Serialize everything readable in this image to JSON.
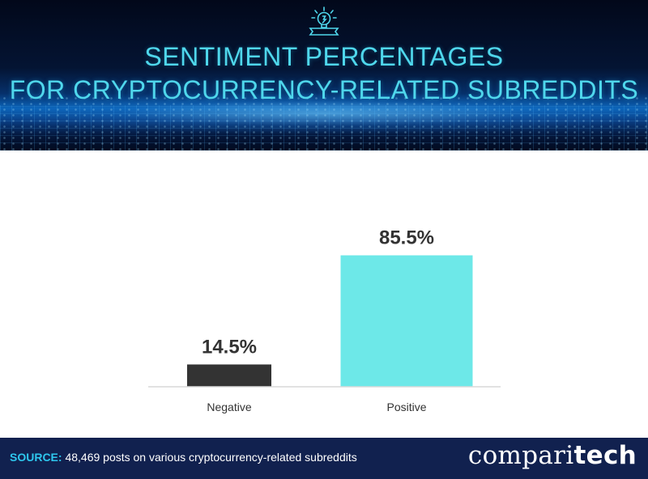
{
  "header": {
    "title_line1": "SENTIMENT PERCENTAGES",
    "title_line2": "FOR CRYPTOCURRENCY-RELATED SUBREDDITS",
    "logo_icon": "lightbulb-icon"
  },
  "chart_data": {
    "type": "bar",
    "categories": [
      "Negative",
      "Positive"
    ],
    "values": [
      14.5,
      85.5
    ],
    "value_labels": [
      "14.5%",
      "85.5%"
    ],
    "colors": [
      "#333333",
      "#6de8e8"
    ],
    "ylim": [
      0,
      100
    ],
    "grid": false,
    "legend": "none",
    "xlabel": "",
    "ylabel": ""
  },
  "footer": {
    "source_label": "SOURCE:",
    "source_text": " 48,469 posts on various cryptocurrency-related subreddits",
    "brand_part1": "compari",
    "brand_part2": "tech"
  }
}
